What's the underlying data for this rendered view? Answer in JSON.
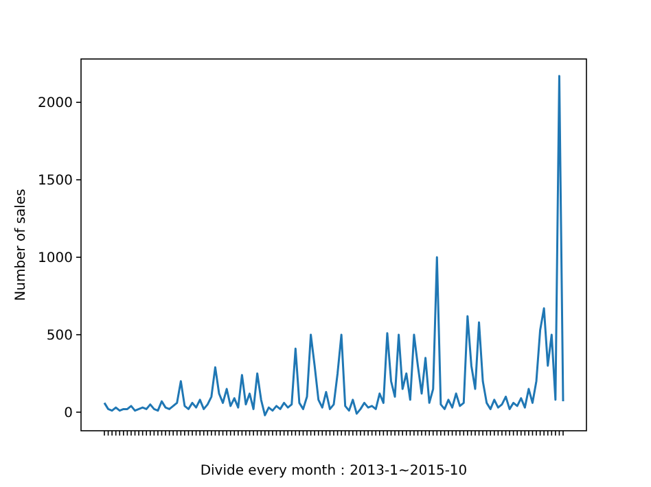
{
  "chart_data": {
    "type": "line",
    "xlabel": "Divide every month：2013-1~2015-10",
    "ylabel": "Number of sales",
    "categories": [
      null,
      null,
      null,
      null,
      null,
      null,
      null,
      null,
      null,
      null,
      null,
      null,
      null,
      null,
      null,
      null,
      null,
      null,
      null,
      null,
      null,
      null,
      null,
      null,
      null,
      null,
      null,
      null,
      null,
      null,
      null,
      null,
      null,
      null,
      null,
      null,
      null,
      null,
      null,
      null,
      null,
      null,
      null,
      null,
      null,
      null,
      null,
      null,
      null,
      null,
      null,
      null,
      null,
      null,
      null,
      null,
      null,
      null,
      null,
      null,
      null,
      null,
      null,
      null,
      null,
      null,
      null,
      null,
      null,
      null,
      null,
      null,
      null,
      null,
      null,
      null,
      null,
      null,
      null,
      null,
      null,
      null,
      null,
      null,
      null,
      null,
      null,
      null,
      null,
      null,
      null,
      null,
      null,
      null,
      null,
      null,
      null,
      null,
      null,
      null,
      null,
      null,
      null,
      null,
      null,
      null,
      null,
      null,
      null,
      null,
      null,
      null,
      null,
      null,
      null,
      null,
      null,
      null,
      null,
      null,
      null
    ],
    "series": [
      {
        "color": "#1f77b4",
        "values": [
          60,
          20,
          10,
          30,
          10,
          20,
          20,
          40,
          10,
          20,
          30,
          20,
          50,
          20,
          10,
          70,
          30,
          20,
          40,
          60,
          200,
          40,
          20,
          60,
          30,
          80,
          20,
          50,
          100,
          290,
          120,
          60,
          150,
          40,
          90,
          30,
          240,
          50,
          120,
          20,
          250,
          80,
          -20,
          30,
          10,
          40,
          20,
          60,
          30,
          50,
          410,
          60,
          20,
          100,
          500,
          300,
          80,
          30,
          130,
          20,
          50,
          250,
          500,
          40,
          10,
          80,
          -10,
          20,
          60,
          30,
          40,
          20,
          120,
          60,
          510,
          200,
          100,
          500,
          150,
          250,
          80,
          500,
          300,
          120,
          350,
          60,
          150,
          1000,
          50,
          20,
          80,
          30,
          120,
          40,
          60,
          620,
          300,
          150,
          580,
          200,
          60,
          20,
          80,
          30,
          50,
          100,
          20,
          60,
          40,
          90,
          30,
          150,
          60,
          200,
          530,
          670,
          300,
          500,
          80,
          2170,
          70
        ]
      }
    ],
    "ylim": [
      -120,
      2280
    ],
    "yticks": [
      0,
      500,
      1000,
      1500,
      2000
    ],
    "grid": false,
    "marker": "none",
    "line_style": "solid"
  }
}
